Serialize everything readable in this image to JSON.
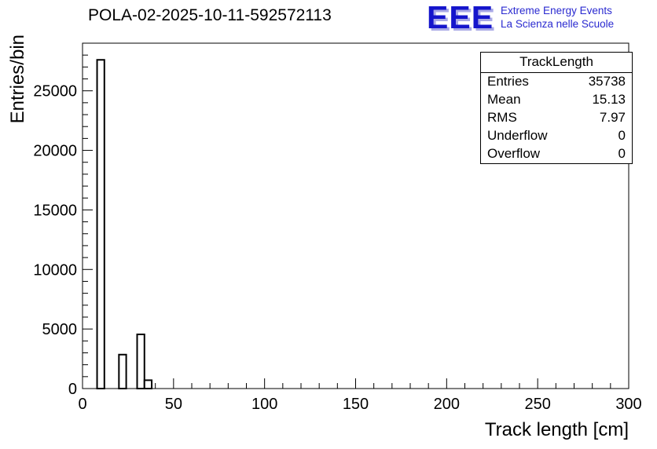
{
  "title": "POLA-02-2025-10-11-592572113",
  "logo": {
    "text": "EEE",
    "line1": "Extreme Energy Events",
    "line2": "La Scienza nelle Scuole",
    "color": "#1515cc",
    "shadow_color": "#a9a9e6"
  },
  "stats": {
    "header": "TrackLength",
    "rows": [
      {
        "label": "Entries",
        "value": "35738"
      },
      {
        "label": "Mean",
        "value": "15.13"
      },
      {
        "label": "RMS",
        "value": "7.97"
      },
      {
        "label": "Underflow",
        "value": "0"
      },
      {
        "label": "Overflow",
        "value": "0"
      }
    ]
  },
  "chart_data": {
    "type": "bar",
    "title": "POLA-02-2025-10-11-592572113",
    "xlabel": "Track length [cm]",
    "ylabel": "Entries/bin",
    "xlim": [
      0,
      300
    ],
    "ylim": [
      0,
      29000
    ],
    "x_ticks": [
      0,
      50,
      100,
      150,
      200,
      250,
      300
    ],
    "y_ticks": [
      0,
      5000,
      10000,
      15000,
      20000,
      25000
    ],
    "x_minor_step": 10,
    "y_minor_step": 1000,
    "grid": false,
    "bar_fill": "#ffffff",
    "bar_stroke": "#000000",
    "bins": [
      {
        "x0": 8,
        "x1": 12,
        "count": 27600
      },
      {
        "x0": 20,
        "x1": 24,
        "count": 2850
      },
      {
        "x0": 30,
        "x1": 34,
        "count": 4550
      },
      {
        "x0": 34,
        "x1": 38,
        "count": 700
      }
    ]
  }
}
